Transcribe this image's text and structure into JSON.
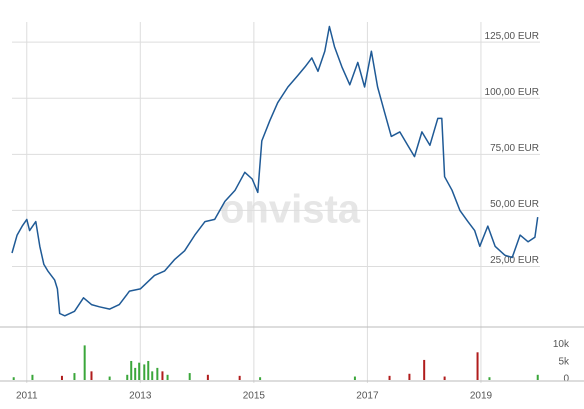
{
  "chart_data": [
    {
      "type": "line",
      "watermark": "onvista",
      "color": "#1f5a96",
      "grid": true,
      "x": [
        2010.74,
        2010.83,
        2010.92,
        2011.0,
        2011.05,
        2011.16,
        2011.23,
        2011.3,
        2011.37,
        2011.49,
        2011.54,
        2011.58,
        2011.67,
        2011.84,
        2012.0,
        2012.14,
        2012.28,
        2012.46,
        2012.63,
        2012.81,
        2013.0,
        2013.25,
        2013.43,
        2013.6,
        2013.78,
        2013.96,
        2014.14,
        2014.31,
        2014.49,
        2014.67,
        2014.84,
        2014.97,
        2015.07,
        2015.14,
        2015.28,
        2015.42,
        2015.6,
        2015.77,
        2015.9,
        2016.02,
        2016.13,
        2016.25,
        2016.33,
        2016.42,
        2016.55,
        2016.69,
        2016.83,
        2016.95,
        2017.07,
        2017.18,
        2017.3,
        2017.42,
        2017.57,
        2017.71,
        2017.83,
        2017.96,
        2018.1,
        2018.24,
        2018.31,
        2018.36,
        2018.49,
        2018.63,
        2018.77,
        2018.89,
        2018.98,
        2019.12,
        2019.25,
        2019.42,
        2019.55,
        2019.69,
        2019.83,
        2019.95,
        2020.0
      ],
      "values": [
        31,
        39,
        43,
        46,
        41,
        45,
        34,
        26,
        23,
        19,
        15,
        4,
        3,
        5,
        11,
        8,
        7,
        6,
        8,
        14,
        15,
        21,
        23,
        28,
        32,
        39,
        45,
        46,
        54,
        59,
        67,
        64,
        58,
        81,
        90,
        98,
        105,
        110,
        114,
        118,
        112,
        121,
        132,
        123,
        114,
        106,
        116,
        105,
        121,
        105,
        94,
        83,
        85,
        79,
        74,
        85,
        79,
        91,
        91,
        65,
        59,
        50,
        45,
        41,
        34,
        43,
        34,
        30,
        29,
        39,
        36,
        38,
        47
      ],
      "xlim": [
        2010.74,
        2020.04
      ],
      "xticks": [
        2011,
        2013,
        2015,
        2017,
        2019
      ],
      "ylim": [
        -2,
        134
      ],
      "yticks": [
        {
          "value": 25,
          "label": "25,00 EUR"
        },
        {
          "value": 50,
          "label": "50,00 EUR"
        },
        {
          "value": 75,
          "label": "75,00 EUR"
        },
        {
          "value": 100,
          "label": "100,00 EUR"
        },
        {
          "value": 125,
          "label": "125,00 EUR"
        }
      ]
    },
    {
      "type": "bar",
      "x": [
        2010.77,
        2011.1,
        2011.62,
        2011.84,
        2012.02,
        2012.14,
        2012.46,
        2012.77,
        2012.84,
        2012.91,
        2012.98,
        2013.07,
        2013.14,
        2013.21,
        2013.3,
        2013.39,
        2013.48,
        2013.87,
        2014.19,
        2014.75,
        2015.11,
        2016.78,
        2017.39,
        2017.74,
        2018.0,
        2018.36,
        2018.94,
        2019.15,
        2020.0
      ],
      "values": [
        800,
        1500,
        1200,
        2000,
        10000,
        2500,
        1000,
        1500,
        5500,
        3500,
        5000,
        4500,
        5500,
        2500,
        3500,
        2500,
        1500,
        2000,
        1500,
        1200,
        800,
        1000,
        1200,
        1800,
        5800,
        1000,
        8000,
        800,
        1500
      ],
      "colors": [
        "#3aa63a",
        "#3aa63a",
        "#b01c1c",
        "#3aa63a",
        "#3aa63a",
        "#b01c1c",
        "#3aa63a",
        "#3aa63a",
        "#3aa63a",
        "#3aa63a",
        "#3aa63a",
        "#3aa63a",
        "#3aa63a",
        "#3aa63a",
        "#3aa63a",
        "#b01c1c",
        "#3aa63a",
        "#3aa63a",
        "#b01c1c",
        "#b01c1c",
        "#3aa63a",
        "#3aa63a",
        "#b01c1c",
        "#b01c1c",
        "#b01c1c",
        "#b01c1c",
        "#b01c1c",
        "#3aa63a",
        "#3aa63a"
      ],
      "ylim": [
        0,
        13000
      ],
      "yticks": [
        0,
        {
          "value": 5000,
          "label": "5k"
        },
        {
          "value": 10000,
          "label": "10k"
        }
      ]
    }
  ]
}
